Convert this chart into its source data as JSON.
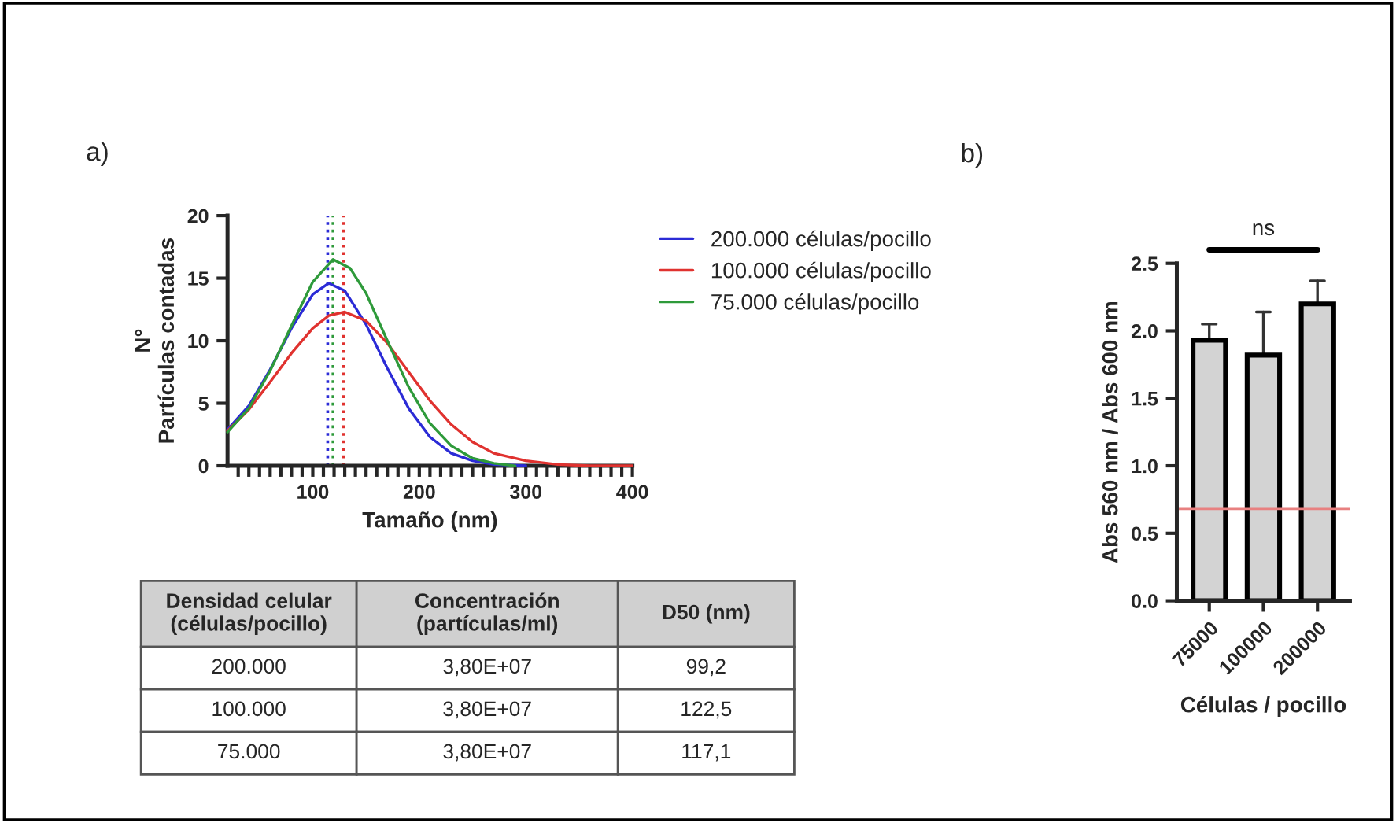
{
  "chart_data": [
    {
      "type": "line",
      "title": "a)",
      "xlabel": "Tamaño (nm)",
      "ylabel": "N°\nPartículas contadas",
      "xlim": [
        20,
        400
      ],
      "xticks": [
        {
          "value": 30,
          "label": null
        },
        {
          "value": 40,
          "label": null
        },
        {
          "value": 50,
          "label": null
        },
        {
          "value": 60,
          "label": null
        },
        {
          "value": 70,
          "label": null
        },
        {
          "value": 80,
          "label": null
        },
        {
          "value": 90,
          "label": null
        },
        100,
        {
          "value": 110,
          "label": null
        },
        {
          "value": 120,
          "label": null
        },
        {
          "value": 130,
          "label": null
        },
        {
          "value": 140,
          "label": null
        },
        {
          "value": 150,
          "label": null
        },
        {
          "value": 160,
          "label": null
        },
        {
          "value": 170,
          "label": null
        },
        {
          "value": 180,
          "label": null
        },
        {
          "value": 190,
          "label": null
        },
        200,
        {
          "value": 210,
          "label": null
        },
        {
          "value": 220,
          "label": null
        },
        {
          "value": 230,
          "label": null
        },
        {
          "value": 240,
          "label": null
        },
        {
          "value": 250,
          "label": null
        },
        {
          "value": 260,
          "label": null
        },
        {
          "value": 270,
          "label": null
        },
        {
          "value": 280,
          "label": null
        },
        {
          "value": 290,
          "label": null
        },
        300,
        {
          "value": 310,
          "label": null
        },
        {
          "value": 320,
          "label": null
        },
        {
          "value": 330,
          "label": null
        },
        {
          "value": 340,
          "label": null
        },
        {
          "value": 350,
          "label": null
        },
        {
          "value": 360,
          "label": null
        },
        {
          "value": 370,
          "label": null
        },
        {
          "value": 380,
          "label": null
        },
        {
          "value": 390,
          "label": null
        },
        400
      ],
      "ylim": [
        0,
        20
      ],
      "yticks": [
        0,
        5,
        10,
        15,
        20
      ],
      "legend": "top right",
      "grid": false,
      "marker": "none",
      "line_style": "solid",
      "series": [
        {
          "name": "200.000 células/pocillo",
          "color": "#2b2bd6",
          "x": [
            20,
            40,
            60,
            80,
            100,
            115,
            130,
            150,
            170,
            190,
            210,
            230,
            250,
            270,
            300
          ],
          "values": [
            2.9,
            4.8,
            7.7,
            11.0,
            13.7,
            14.6,
            14.0,
            11.3,
            7.8,
            4.6,
            2.3,
            1.0,
            0.4,
            0.1,
            0
          ]
        },
        {
          "name": "100.000 células/pocillo",
          "color": "#e0322f",
          "x": [
            20,
            40,
            60,
            80,
            100,
            115,
            130,
            150,
            170,
            190,
            210,
            230,
            250,
            270,
            300,
            330,
            360,
            400
          ],
          "values": [
            2.8,
            4.5,
            6.7,
            9.0,
            11.0,
            12.0,
            12.3,
            11.6,
            9.8,
            7.5,
            5.2,
            3.3,
            1.9,
            1.0,
            0.4,
            0.1,
            0,
            0
          ]
        },
        {
          "name": "75.000 células/pocillo",
          "color": "#2e9a3a",
          "x": [
            20,
            40,
            60,
            80,
            100,
            119,
            135,
            150,
            170,
            190,
            210,
            230,
            250,
            270,
            290
          ],
          "values": [
            2.7,
            4.6,
            7.6,
            11.2,
            14.7,
            16.5,
            15.8,
            13.8,
            10.0,
            6.3,
            3.4,
            1.6,
            0.6,
            0.2,
            0
          ]
        }
      ],
      "ref_lines": [
        {
          "axis": "x",
          "value": 114,
          "color": "#2b2bd6",
          "line_style": "dotted"
        },
        {
          "axis": "x",
          "value": 119,
          "color": "#2e9a3a",
          "line_style": "dotted"
        },
        {
          "axis": "x",
          "value": 129,
          "color": "#e0322f",
          "line_style": "dotted"
        }
      ]
    },
    {
      "type": "other",
      "annotations": [
        "Densidad celular\n(células/pocillo)",
        "Concentración\n(partículas/ml)",
        "D50 (nm)",
        "200.000",
        "3,80E+07",
        "99,2",
        "100.000",
        "3,80E+07",
        "122,5",
        "75.000",
        "3,80E+07",
        "117,1"
      ]
    },
    {
      "type": "bar",
      "title": "b)",
      "xlabel": "Células / pocillo",
      "ylabel": "Abs 560 nm / Abs 600 nm",
      "categories": [
        "75000",
        "100000",
        "200000"
      ],
      "values": [
        1.93,
        1.82,
        2.2
      ],
      "colors": [
        "#d3d3d3",
        "#d3d3d3",
        "#d3d3d3"
      ],
      "errors": [
        [
          1.93,
          2.05
        ],
        [
          1.82,
          2.14
        ],
        [
          2.2,
          2.37
        ]
      ],
      "ylim": [
        0,
        2.5
      ],
      "yticks": [
        {
          "value": 0,
          "label": "0.0"
        },
        {
          "value": 0.5,
          "label": "0.5"
        },
        {
          "value": 1,
          "label": "1.0"
        },
        {
          "value": 1.5,
          "label": "1.5"
        },
        {
          "value": 2,
          "label": "2.0"
        },
        {
          "value": 2.5,
          "label": "2.5"
        }
      ],
      "ref_lines": [
        {
          "axis": "y",
          "value": 0.68,
          "color": "#e88080",
          "line_style": "solid"
        }
      ],
      "annotations": [
        "ns"
      ],
      "grid": false
    }
  ]
}
